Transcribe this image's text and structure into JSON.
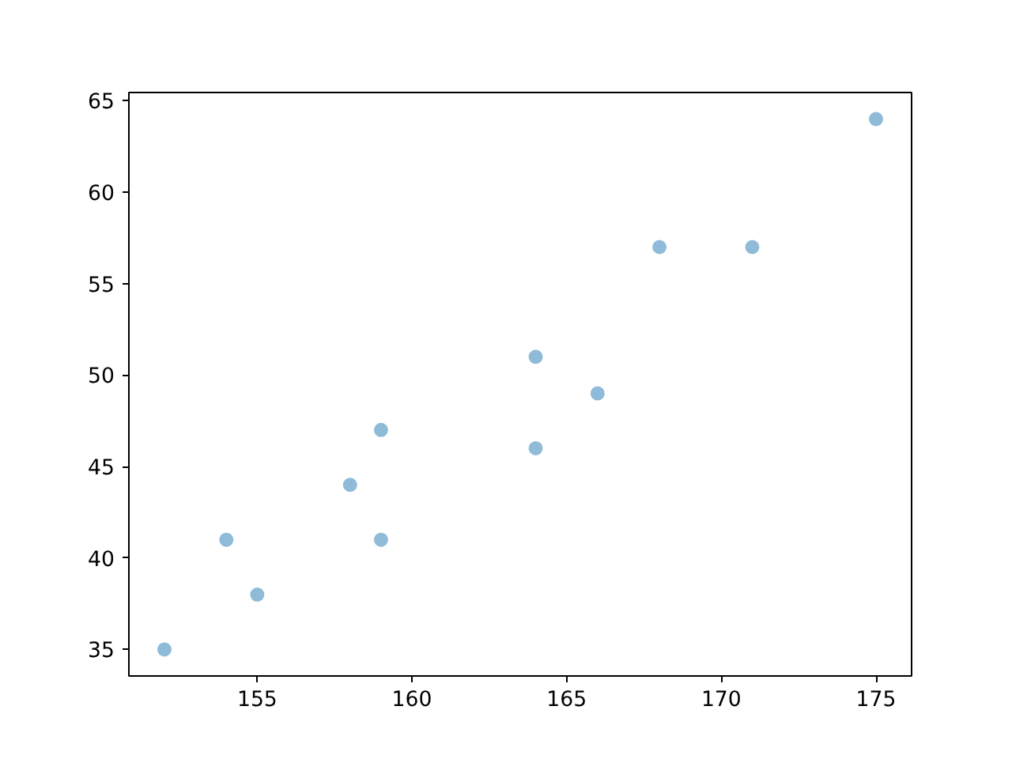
{
  "chart_data": {
    "type": "scatter",
    "x": [
      152,
      154,
      155,
      158,
      159,
      159,
      164,
      164,
      166,
      168,
      171,
      175
    ],
    "series": [
      {
        "color": "#8fbbd9",
        "values": [
          35,
          41,
          38,
          44,
          47,
          41,
          51,
          46,
          49,
          57,
          57,
          64
        ]
      }
    ],
    "xlim": [
      150.85,
      176.15
    ],
    "ylim": [
      33.55,
      65.45
    ],
    "xticks": [
      155,
      160,
      165,
      170,
      175
    ],
    "yticks": [
      35,
      40,
      45,
      50,
      55,
      60,
      65
    ],
    "grid": false,
    "marker": "circle"
  }
}
